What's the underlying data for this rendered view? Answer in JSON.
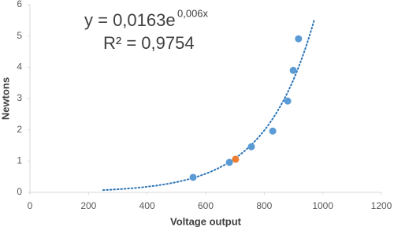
{
  "chart_data": {
    "type": "scatter",
    "x_label": "Voltage output",
    "y_label": "Newtons",
    "xlim": [
      0,
      1200
    ],
    "xticks": [
      0,
      200,
      400,
      600,
      800,
      1000,
      1200
    ],
    "ylim": [
      0,
      6
    ],
    "yticks": [
      0,
      1,
      2,
      3,
      4,
      5,
      6
    ],
    "series": [
      {
        "color": "#5b9bd5",
        "x": [
          557,
          681,
          756,
          829,
          880,
          899,
          917
        ],
        "values": [
          0.48,
          0.96,
          1.46,
          1.96,
          2.92,
          3.9,
          4.91
        ]
      },
      {
        "color": "#ed7d31",
        "x": [
          702
        ],
        "values": [
          1.06
        ]
      }
    ],
    "trendline": {
      "equation": "y = 0,0163e",
      "exponent": "0,006x",
      "r2": "R² = 0,9754",
      "coefficient": 0.0163,
      "rate": 0.006,
      "x_range": [
        250,
        970
      ],
      "color": "#2e75b6"
    }
  }
}
